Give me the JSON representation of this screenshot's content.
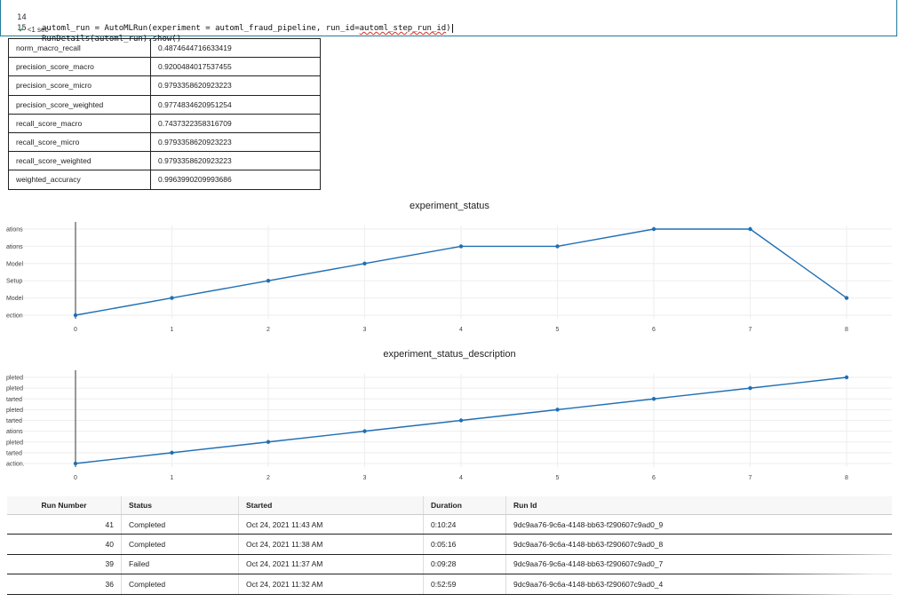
{
  "code_cell": {
    "lines": [
      {
        "num": "14",
        "pre": "automl_run = AutoMLRun(",
        "mid": "experiment = automl_fraud_pipeline, run_id=",
        "squig": "automl_step_run_id",
        "post": ")"
      },
      {
        "num": "15",
        "text": "RunDetails(automl_run).show()"
      }
    ],
    "exec_status": "<1 sec"
  },
  "metrics": [
    {
      "name": "norm_macro_recall",
      "value": "0.4874644716633419"
    },
    {
      "name": "precision_score_macro",
      "value": "0.9200484017537455"
    },
    {
      "name": "precision_score_micro",
      "value": "0.9793358620923223"
    },
    {
      "name": "precision_score_weighted",
      "value": "0.9774834620951254"
    },
    {
      "name": "recall_score_macro",
      "value": "0.7437322358316709"
    },
    {
      "name": "recall_score_micro",
      "value": "0.9793358620923223"
    },
    {
      "name": "recall_score_weighted",
      "value": "0.9793358620923223"
    },
    {
      "name": "weighted_accuracy",
      "value": "0.9963990209993686"
    }
  ],
  "chart_data": [
    {
      "type": "line",
      "title": "experiment_status",
      "x": [
        0,
        1,
        2,
        3,
        4,
        5,
        6,
        7,
        8
      ],
      "y_categories": [
        "ection",
        "Model",
        "Setup",
        "Model",
        "ations",
        "ations"
      ],
      "y_index": [
        0,
        1,
        2,
        3,
        4,
        4,
        5,
        5,
        1
      ],
      "xticks": [
        "0",
        "1",
        "2",
        "3",
        "4",
        "5",
        "6",
        "7",
        "8"
      ]
    },
    {
      "type": "line",
      "title": "experiment_status_description",
      "x": [
        0,
        1,
        2,
        3,
        4,
        5,
        6,
        7,
        8
      ],
      "y_categories": [
        "action.",
        "tarted",
        "pleted",
        "ations",
        "tarted",
        "pleted",
        "tarted",
        "pleted",
        "pleted"
      ],
      "y_index": [
        0,
        1,
        2,
        3,
        4,
        5,
        6,
        7,
        8
      ],
      "xticks": [
        "0",
        "1",
        "2",
        "3",
        "4",
        "5",
        "6",
        "7",
        "8"
      ]
    }
  ],
  "runs": {
    "headers": [
      "Run Number",
      "Status",
      "Started",
      "Duration",
      "Run Id"
    ],
    "rows": [
      {
        "number": "41",
        "status": "Completed",
        "started": "Oct 24, 2021 11:43 AM",
        "duration": "0:10:24",
        "run_id": "9dc9aa76-9c6a-4148-bb63-f290607c9ad0_9"
      },
      {
        "number": "40",
        "status": "Completed",
        "started": "Oct 24, 2021 11:38 AM",
        "duration": "0:05:16",
        "run_id": "9dc9aa76-9c6a-4148-bb63-f290607c9ad0_8"
      },
      {
        "number": "39",
        "status": "Failed",
        "started": "Oct 24, 2021 11:37 AM",
        "duration": "0:09:28",
        "run_id": "9dc9aa76-9c6a-4148-bb63-f290607c9ad0_7"
      },
      {
        "number": "36",
        "status": "Completed",
        "started": "Oct 24, 2021 11:32 AM",
        "duration": "0:52:59",
        "run_id": "9dc9aa76-9c6a-4148-bb63-f290607c9ad0_4"
      }
    ]
  },
  "colors": {
    "series": "#1f6fb4",
    "failed": "#c0221c",
    "cell_border": "#1f7a9c",
    "check": "#2e8b57"
  }
}
